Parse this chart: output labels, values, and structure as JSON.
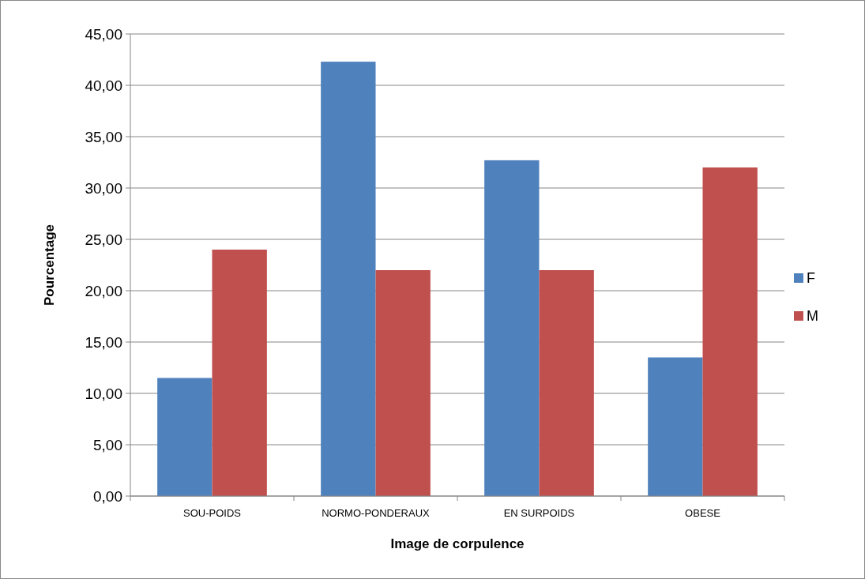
{
  "chart_data": {
    "type": "bar",
    "xlabel": "Image de corpulence",
    "ylabel": "Pourcentage",
    "categories": [
      "SOU-POIDS",
      "NORMO-PONDERAUX",
      "EN SURPOIDS",
      "OBESE"
    ],
    "series": [
      {
        "name": "F",
        "color": "#4f81bd",
        "values": [
          11.5,
          42.3,
          32.7,
          13.5
        ]
      },
      {
        "name": "M",
        "color": "#c0504d",
        "values": [
          24.0,
          22.0,
          22.0,
          32.0
        ]
      }
    ],
    "ylim": [
      0,
      45
    ],
    "yticks": [
      {
        "value": 0,
        "label": "0,00"
      },
      {
        "value": 5,
        "label": "5,00"
      },
      {
        "value": 10,
        "label": "10,00"
      },
      {
        "value": 15,
        "label": "15,00"
      },
      {
        "value": 20,
        "label": "20,00"
      },
      {
        "value": 25,
        "label": "25,00"
      },
      {
        "value": 30,
        "label": "30,00"
      },
      {
        "value": 35,
        "label": "35,00"
      },
      {
        "value": 40,
        "label": "40,00"
      },
      {
        "value": 45,
        "label": "45,00"
      }
    ],
    "grid": "y",
    "legend": "right"
  }
}
